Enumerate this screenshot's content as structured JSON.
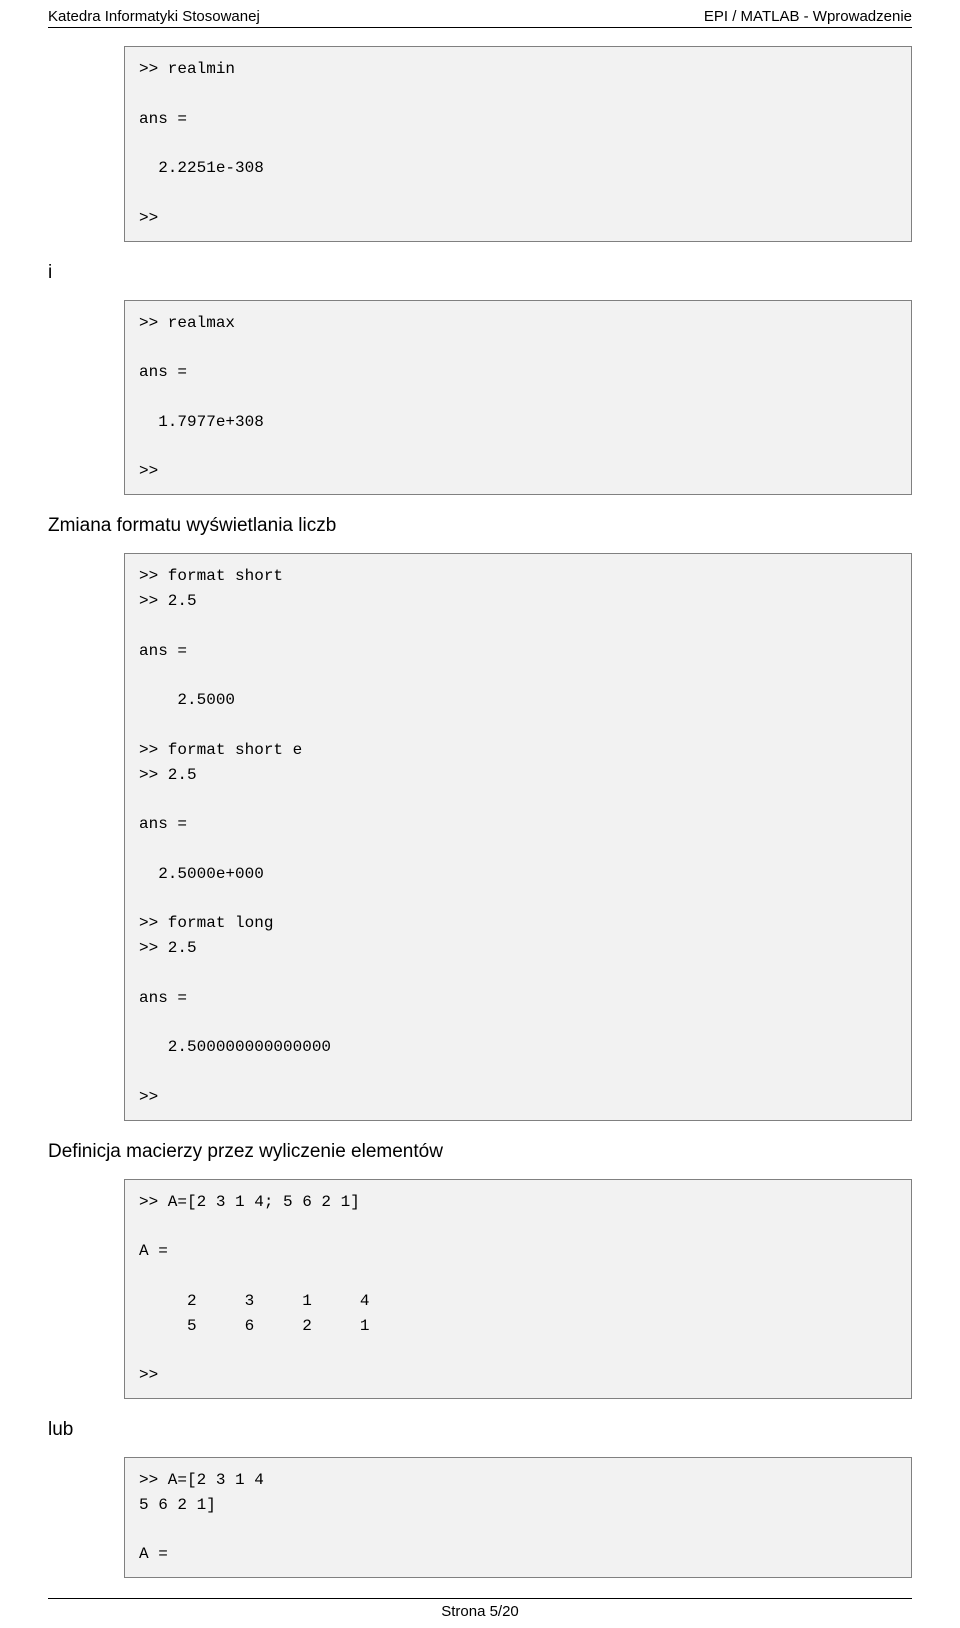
{
  "header": {
    "left": "Katedra Informatyki Stosowanej",
    "right": "EPI / MATLAB - Wprowadzenie"
  },
  "code1": ">> realmin\n\nans =\n\n  2.2251e-308\n\n>>",
  "label_i": "i",
  "code2": ">> realmax\n\nans =\n\n  1.7977e+308\n\n>>",
  "section_format": "Zmiana formatu wyświetlania liczb",
  "code3": ">> format short\n>> 2.5\n\nans =\n\n    2.5000\n\n>> format short e\n>> 2.5\n\nans =\n\n  2.5000e+000\n\n>> format long\n>> 2.5\n\nans =\n\n   2.500000000000000\n\n>>",
  "section_matrix": "Definicja macierzy przez wyliczenie elementów",
  "code4": ">> A=[2 3 1 4; 5 6 2 1]\n\nA =\n\n     2     3     1     4\n     5     6     2     1\n\n>>",
  "label_lub": "lub",
  "code5": ">> A=[2 3 1 4\n5 6 2 1]\n\nA =",
  "footer": "Strona 5/20"
}
